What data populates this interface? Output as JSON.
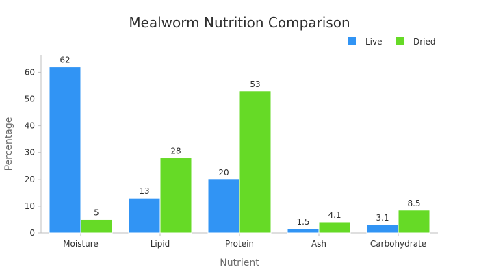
{
  "chart_data": {
    "type": "bar",
    "title": "Mealworm Nutrition Comparison",
    "xlabel": "Nutrient",
    "ylabel": "Percentage",
    "categories": [
      "Moisture",
      "Lipid",
      "Protein",
      "Ash",
      "Carbohydrate"
    ],
    "series": [
      {
        "name": "Live",
        "values": [
          62,
          13,
          20,
          1.5,
          3.1
        ],
        "labels": [
          "62",
          "13",
          "20",
          "1.5",
          "3.1"
        ],
        "color": "#3194f4"
      },
      {
        "name": "Dried",
        "values": [
          5,
          28,
          53,
          4.1,
          8.5
        ],
        "labels": [
          "5",
          "28",
          "53",
          "4.1",
          "8.5"
        ],
        "color": "#66da26"
      }
    ],
    "ylim": [
      0,
      66.5
    ],
    "yticks": [
      0,
      10,
      20,
      30,
      40,
      50,
      60
    ],
    "grid": false,
    "legend_position": "top-right"
  }
}
